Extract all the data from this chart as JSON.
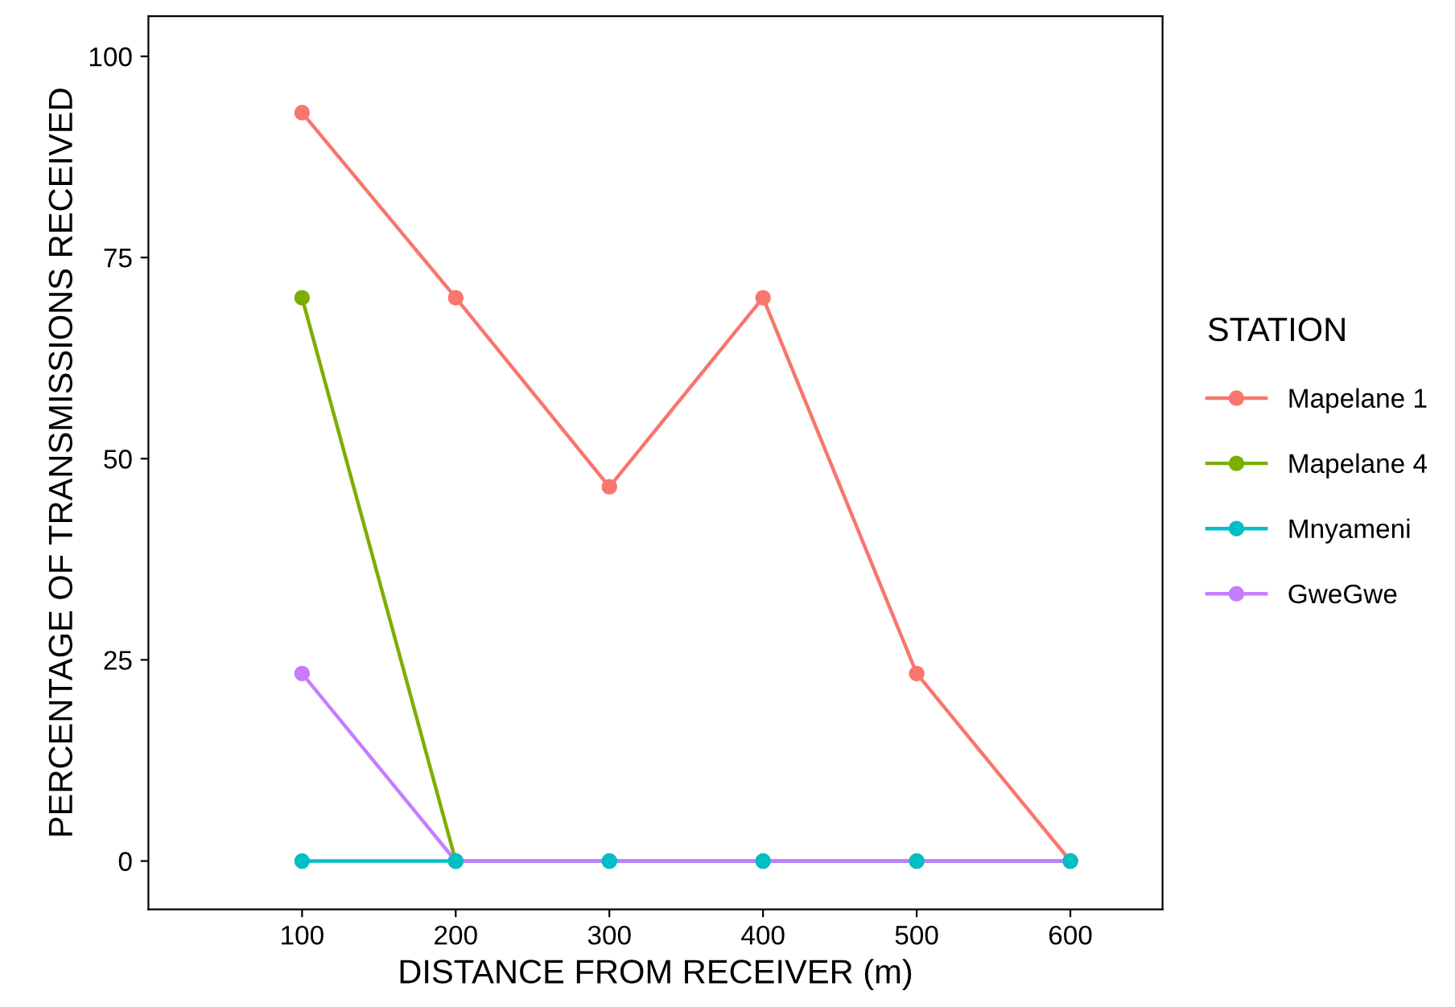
{
  "chart_data": {
    "type": "line",
    "xlabel": "DISTANCE FROM RECEIVER (m)",
    "ylabel": "PERCENTAGE OF TRANSMISSIONS RECEIVED",
    "legend_title": "STATION",
    "x": [
      100,
      200,
      300,
      400,
      500,
      600
    ],
    "series": [
      {
        "name": "Mapelane 1",
        "color": "#f8766d",
        "values": [
          93,
          70,
          46.5,
          70,
          23.3,
          0
        ]
      },
      {
        "name": "Mapelane 4",
        "color": "#7cae00",
        "values": [
          70,
          0,
          null,
          null,
          null,
          null
        ]
      },
      {
        "name": "Mnyameni",
        "color": "#00bfc4",
        "values": [
          0,
          0,
          0,
          0,
          0,
          0
        ]
      },
      {
        "name": "GweGwe",
        "color": "#c77cff",
        "values": [
          23.3,
          0,
          0,
          0,
          0,
          0
        ]
      }
    ],
    "xlim": [
      0,
      660
    ],
    "xticks": [
      100,
      200,
      300,
      400,
      500,
      600
    ],
    "ylim": [
      -6,
      105
    ],
    "yticks": [
      0,
      25,
      50,
      75,
      100
    ],
    "grid": false,
    "legend": "right",
    "marker": "circle",
    "line_style": "solid"
  }
}
